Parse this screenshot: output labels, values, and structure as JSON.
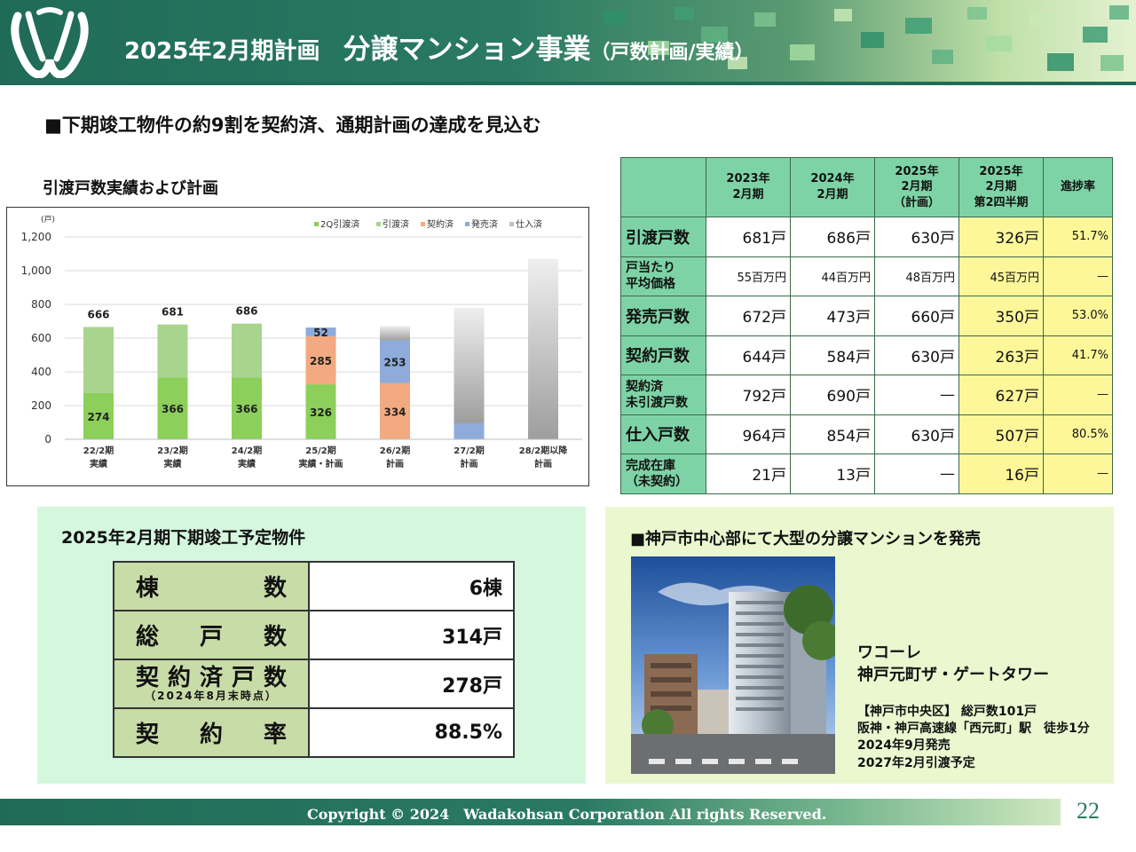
{
  "header": {
    "title_period": "2025年2月期計画",
    "title_main": "分譲マンション事業",
    "title_sub": "（戸数計画/実績）"
  },
  "headline": "■下期竣工物件の約9割を契約済、通期計画の達成を見込む",
  "chart_title": "引渡戸数実績および計画",
  "chart_data": {
    "type": "bar",
    "unit_label": "(戸)",
    "ylim": [
      0,
      1200
    ],
    "yticks": [
      "0",
      "200",
      "400",
      "600",
      "800",
      "1,000",
      "1,200"
    ],
    "grid": true,
    "legend_position": "top-right",
    "categories": [
      [
        "22/2期",
        "実績"
      ],
      [
        "23/2期",
        "実績"
      ],
      [
        "24/2期",
        "実績"
      ],
      [
        "25/2期",
        "実績・計画"
      ],
      [
        "26/2期",
        "計画"
      ],
      [
        "27/2期",
        "計画"
      ],
      [
        "28/2期以降",
        "計画"
      ]
    ],
    "series": [
      {
        "name": "2Q引渡済",
        "color": "#8ccf5a",
        "values": [
          274,
          366,
          366,
          326,
          0,
          0,
          0
        ]
      },
      {
        "name": "引渡済",
        "color": "#a8d48e",
        "values": [
          392,
          315,
          320,
          0,
          0,
          0,
          0
        ]
      },
      {
        "name": "契約済",
        "color": "#f4aa80",
        "values": [
          0,
          0,
          0,
          285,
          334,
          0,
          0
        ]
      },
      {
        "name": "発売済",
        "color": "#8eabdc",
        "values": [
          0,
          0,
          0,
          52,
          253,
          95,
          0
        ]
      },
      {
        "name": "仕入済",
        "color": "#c0c0c0",
        "values": [
          0,
          0,
          0,
          0,
          85,
          685,
          1070
        ]
      }
    ],
    "totals": [
      666,
      681,
      686,
      null,
      null,
      null,
      null
    ],
    "data_labels": [
      [
        "274",
        "",
        "",
        "",
        ""
      ],
      [
        "366",
        "",
        "",
        "",
        ""
      ],
      [
        "366",
        "",
        "",
        "",
        ""
      ],
      [
        "326",
        "",
        "285",
        "52",
        ""
      ],
      [
        "",
        "",
        "334",
        "253",
        ""
      ],
      [
        "",
        "",
        "",
        "",
        ""
      ],
      [
        "",
        "",
        "",
        "",
        ""
      ]
    ]
  },
  "table": {
    "headers": [
      [
        "2023年",
        "2月期"
      ],
      [
        "2024年",
        "2月期"
      ],
      [
        "2025年",
        "2月期",
        "（計画）"
      ],
      [
        "2025年",
        "2月期",
        "第2四半期"
      ],
      [
        "進捗率"
      ]
    ],
    "rows": [
      {
        "label": [
          "引渡戸数"
        ],
        "values": [
          "681戸",
          "686戸",
          "630戸",
          "326戸",
          "51.7%"
        ]
      },
      {
        "label": [
          "戸当たり",
          "平均価格"
        ],
        "values": [
          "55百万円",
          "44百万円",
          "48百万円",
          "45百万円",
          "—"
        ],
        "small": true
      },
      {
        "label": [
          "発売戸数"
        ],
        "values": [
          "672戸",
          "473戸",
          "660戸",
          "350戸",
          "53.0%"
        ]
      },
      {
        "label": [
          "契約戸数"
        ],
        "values": [
          "644戸",
          "584戸",
          "630戸",
          "263戸",
          "41.7%"
        ]
      },
      {
        "label": [
          "契約済",
          "未引渡戸数"
        ],
        "values": [
          "792戸",
          "690戸",
          "—",
          "627戸",
          "—"
        ]
      },
      {
        "label": [
          "仕入戸数"
        ],
        "values": [
          "964戸",
          "854戸",
          "630戸",
          "507戸",
          "80.5%"
        ]
      },
      {
        "label": [
          "完成在庫",
          "（未契約）"
        ],
        "values": [
          "21戸",
          "13戸",
          "—",
          "16戸",
          "—"
        ]
      }
    ]
  },
  "panel_left": {
    "title": "2025年2月期下期竣工予定物件",
    "rows": [
      {
        "label_chars": [
          "棟",
          "数"
        ],
        "value": "6棟"
      },
      {
        "label_chars": [
          "総",
          "戸",
          "数"
        ],
        "value": "314戸"
      },
      {
        "label_chars": [
          "契",
          "約",
          "済",
          "戸",
          "数"
        ],
        "note": "（2024年8月末時点）",
        "value": "278戸"
      },
      {
        "label_chars": [
          "契",
          "約",
          "率"
        ],
        "value": "88.5%"
      }
    ]
  },
  "panel_right": {
    "title": "■神戸市中心部にて大型の分譲マンションを発売",
    "name_line1": "ワコーレ",
    "name_line2": "神戸元町ザ・ゲートタワー",
    "info": [
      "【神戸市中央区】 総戸数101戸",
      "阪神・神戸高速線「西元町」駅　徒歩1分",
      "2024年9月発売",
      "2027年2月引渡予定"
    ]
  },
  "footer": {
    "copyright": "Copyright © 2024　Wadakohsan Corporation All rights Reserved.",
    "page": "22"
  },
  "colors": {
    "brand_green": "#1f6b57",
    "table_header": "#7ed3a6",
    "highlight_yellow": "#fdf79a"
  }
}
